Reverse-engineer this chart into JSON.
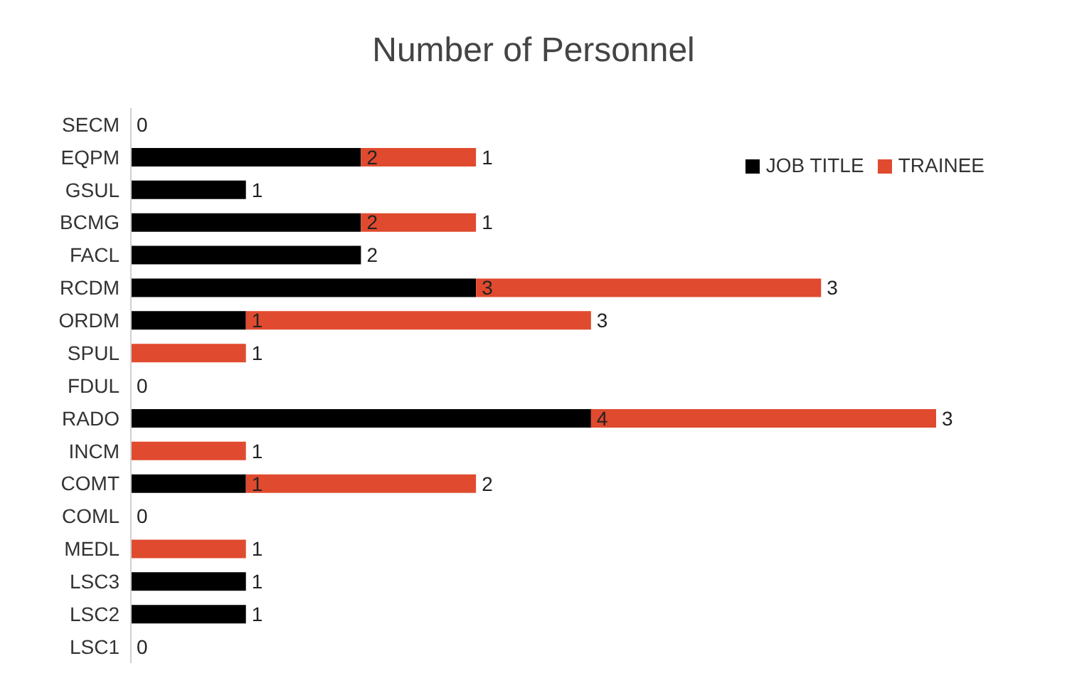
{
  "chart_data": {
    "type": "bar",
    "orientation": "horizontal",
    "stacked": true,
    "title": "Number of Personnel",
    "categories": [
      "SECM",
      "EQPM",
      "GSUL",
      "BCMG",
      "FACL",
      "RCDM",
      "ORDM",
      "SPUL",
      "FDUL",
      "RADO",
      "INCM",
      "COMT",
      "COML",
      "MEDL",
      "LSC3",
      "LSC2",
      "LSC1"
    ],
    "series": [
      {
        "name": "JOB TITLE",
        "color": "#000000",
        "values": [
          0,
          2,
          1,
          2,
          2,
          3,
          1,
          null,
          0,
          4,
          null,
          1,
          0,
          null,
          1,
          1,
          0
        ]
      },
      {
        "name": "TRAINEE",
        "color": "#e04a2f",
        "values": [
          null,
          1,
          null,
          1,
          null,
          3,
          3,
          1,
          null,
          3,
          1,
          2,
          null,
          1,
          null,
          null,
          null
        ]
      }
    ],
    "data_labels": true,
    "legend": "top right",
    "grid": false
  }
}
